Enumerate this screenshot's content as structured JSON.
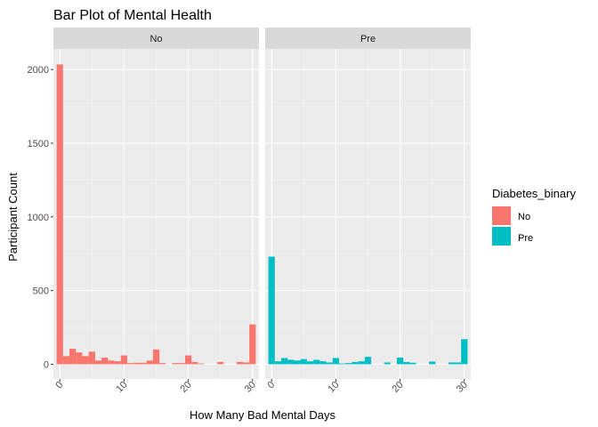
{
  "chart_data": {
    "type": "bar",
    "title": "Bar Plot of Mental Health",
    "xlabel": "How Many Bad Mental Days",
    "ylabel": "Participant Count",
    "xlim": [
      -1,
      31
    ],
    "ylim": [
      -100,
      2140
    ],
    "x_ticks": [
      0,
      10,
      20,
      30
    ],
    "y_ticks": [
      0,
      500,
      1000,
      1500,
      2000
    ],
    "legend": {
      "title": "Diabetes_binary",
      "position": "right",
      "entries": [
        {
          "label": "No",
          "color": "#F8766D"
        },
        {
          "label": "Pre",
          "color": "#00BFC4"
        }
      ]
    },
    "panels": [
      {
        "strip": "No",
        "color": "#F8766D",
        "x": [
          0,
          1,
          2,
          3,
          4,
          5,
          6,
          7,
          8,
          9,
          10,
          11,
          12,
          13,
          14,
          15,
          16,
          17,
          18,
          19,
          20,
          21,
          22,
          23,
          24,
          25,
          26,
          27,
          28,
          29,
          30
        ],
        "values": [
          2035,
          55,
          105,
          80,
          55,
          85,
          25,
          45,
          25,
          20,
          60,
          8,
          10,
          10,
          25,
          100,
          8,
          0,
          8,
          8,
          60,
          15,
          5,
          0,
          0,
          15,
          0,
          0,
          15,
          12,
          270
        ]
      },
      {
        "strip": "Pre",
        "color": "#00BFC4",
        "x": [
          0,
          1,
          2,
          3,
          4,
          5,
          6,
          7,
          8,
          9,
          10,
          11,
          12,
          13,
          14,
          15,
          16,
          17,
          18,
          19,
          20,
          21,
          22,
          23,
          24,
          25,
          26,
          27,
          28,
          29,
          30
        ],
        "values": [
          730,
          20,
          42,
          30,
          25,
          35,
          20,
          30,
          20,
          12,
          42,
          5,
          8,
          15,
          20,
          50,
          0,
          0,
          12,
          0,
          45,
          15,
          10,
          0,
          0,
          18,
          0,
          0,
          12,
          12,
          170
        ]
      }
    ]
  }
}
